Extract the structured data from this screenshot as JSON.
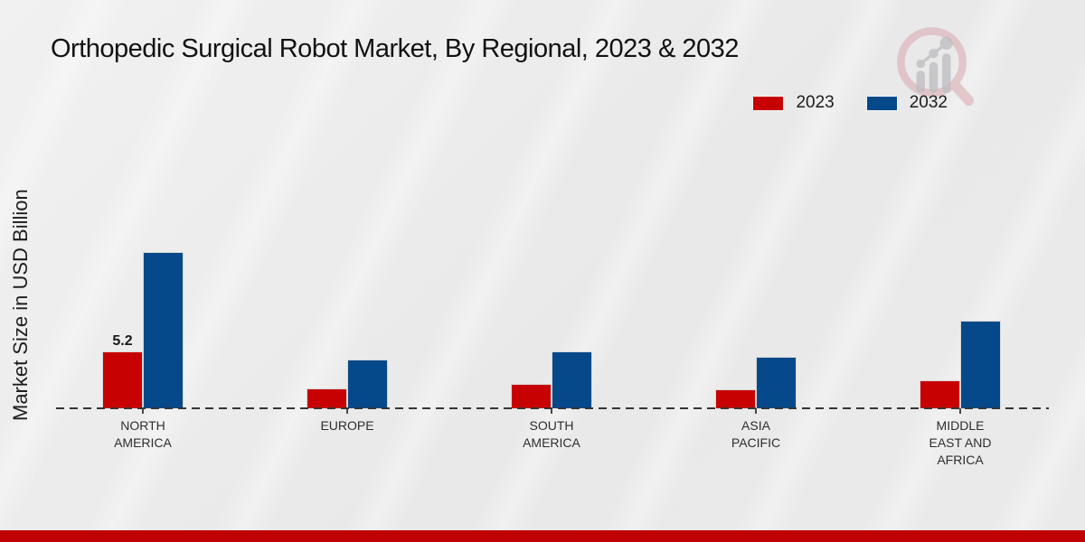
{
  "page": {
    "background_color": "#eaeaea",
    "footer_bar_color": "#bf0101"
  },
  "header": {
    "logo_icon": "magnifier-bar-chart-logo"
  },
  "chart_data": {
    "type": "bar",
    "title": "Orthopedic Surgical Robot Market, By Regional, 2023 & 2032",
    "xlabel": "",
    "ylabel": "Market Size in USD Billion",
    "categories": [
      "NORTH AMERICA",
      "EUROPE",
      "SOUTH AMERICA",
      "ASIA PACIFIC",
      "MIDDLE EAST AND AFRICA"
    ],
    "series": [
      {
        "name": "2023",
        "color": "#c70101",
        "values": [
          5.2,
          1.8,
          2.2,
          1.7,
          2.6
        ]
      },
      {
        "name": "2032",
        "color": "#05498a",
        "values": [
          14.3,
          4.5,
          5.2,
          4.7,
          8.0
        ]
      }
    ],
    "annotations": [
      {
        "series_index": 0,
        "category_index": 0,
        "text": "5.2"
      }
    ],
    "baseline_value": 0,
    "grid": "none",
    "legend_position": "top-right",
    "axis_line_style": "dashed-black-zero-line",
    "units": "USD Billion"
  }
}
